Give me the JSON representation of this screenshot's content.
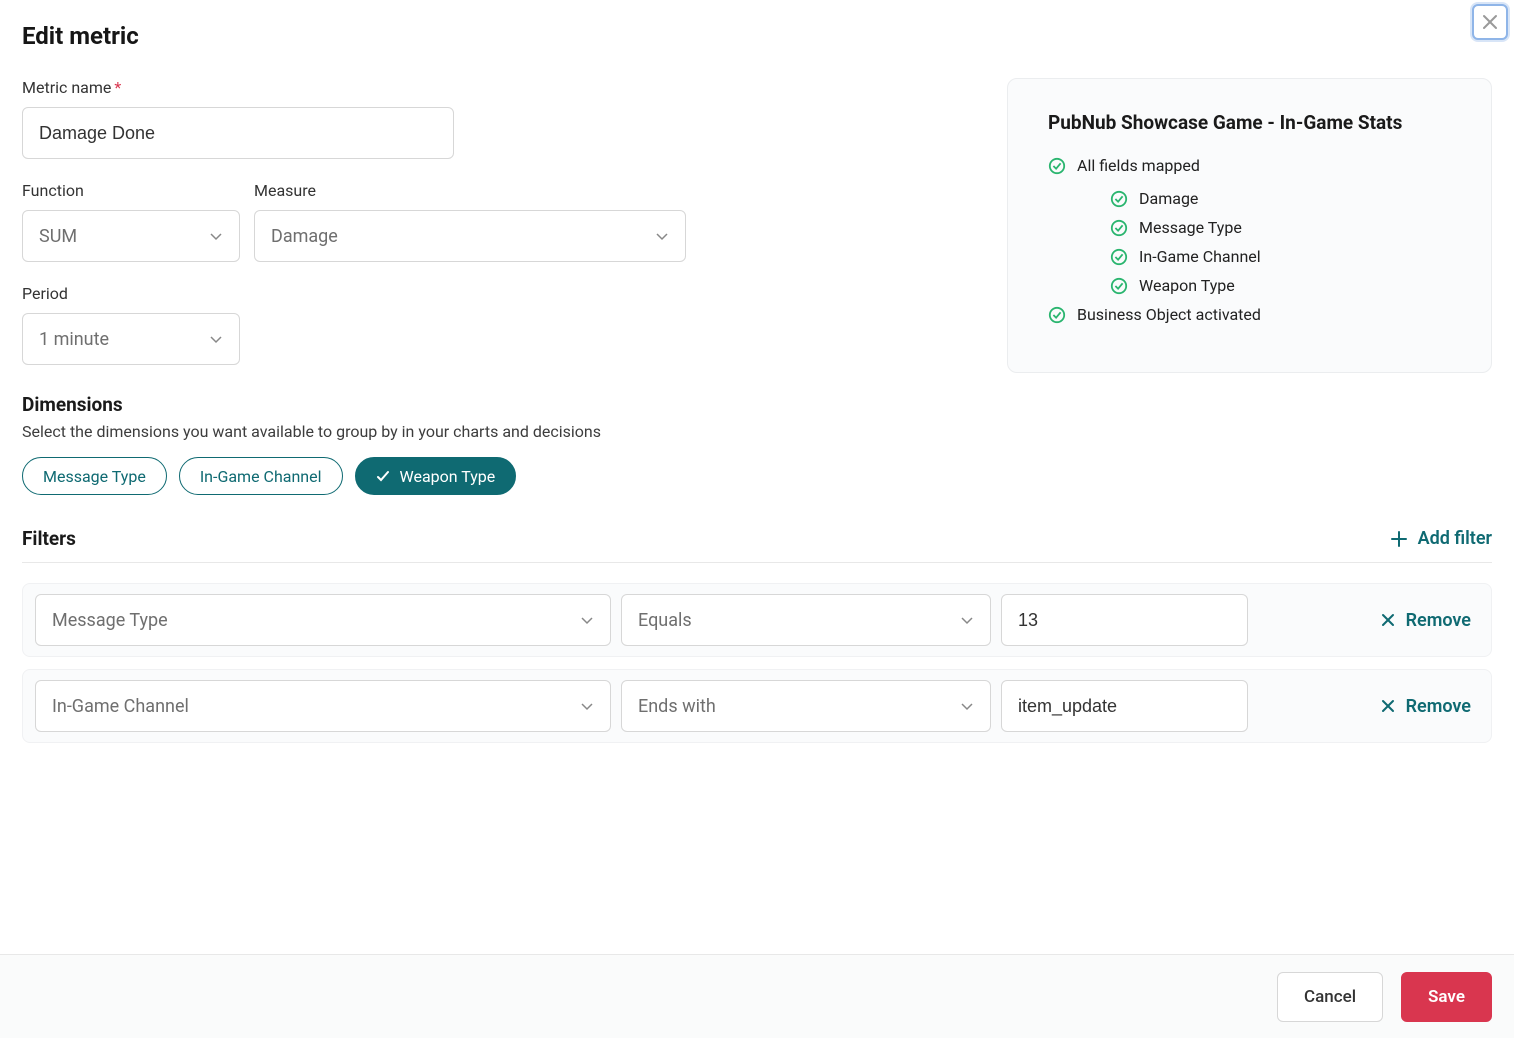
{
  "modal": {
    "title": "Edit metric",
    "labels": {
      "metricName": "Metric name",
      "function": "Function",
      "measure": "Measure",
      "period": "Period"
    },
    "metricNameValue": "Damage Done",
    "functionValue": "SUM",
    "measureValue": "Damage",
    "periodValue": "1 minute"
  },
  "sidePanel": {
    "title": "PubNub Showcase Game - In-Game Stats",
    "allFieldsMapped": "All fields mapped",
    "fields": [
      "Damage",
      "Message Type",
      "In-Game Channel",
      "Weapon Type"
    ],
    "activated": "Business Object activated"
  },
  "dimensions": {
    "title": "Dimensions",
    "subtitle": "Select the dimensions you want available to group by in your charts and decisions",
    "chips": [
      {
        "label": "Message Type",
        "selected": false
      },
      {
        "label": "In-Game Channel",
        "selected": false
      },
      {
        "label": "Weapon Type",
        "selected": true
      }
    ]
  },
  "filters": {
    "title": "Filters",
    "addLabel": "Add filter",
    "removeLabel": "Remove",
    "rows": [
      {
        "field": "Message Type",
        "op": "Equals",
        "value": "13"
      },
      {
        "field": "In-Game Channel",
        "op": "Ends with",
        "value": "item_update"
      }
    ]
  },
  "footer": {
    "cancel": "Cancel",
    "save": "Save"
  },
  "colors": {
    "accent": "#0f6a72",
    "danger": "#d9364f",
    "success": "#2ab56f",
    "border": "#d7d7d7",
    "panelBg": "#fafbfc"
  }
}
